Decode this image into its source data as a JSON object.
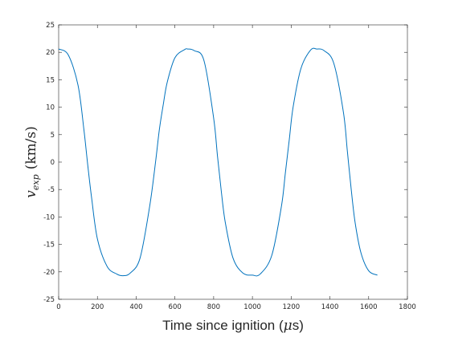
{
  "chart_data": {
    "type": "line",
    "title": "",
    "xlabel": "Time since ignition (μs)",
    "xlabel_parts": {
      "main": "Time since ignition (",
      "symbol": "μ",
      "unit_end": "s)"
    },
    "ylabel": "v_exp (km/s)",
    "ylabel_parts": {
      "var": "v",
      "sub": "exp",
      "unit": "(km/s)"
    },
    "xlim": [
      0,
      1800
    ],
    "ylim": [
      -25,
      25
    ],
    "xticks": [
      0,
      200,
      400,
      600,
      800,
      1000,
      1200,
      1400,
      1600,
      1800
    ],
    "yticks": [
      -25,
      -20,
      -15,
      -10,
      -5,
      0,
      5,
      10,
      15,
      20,
      25
    ],
    "grid": false,
    "legend": "none",
    "series": [
      {
        "color": "#0072BD",
        "x": [
          0,
          50,
          100,
          130,
          150,
          170,
          200,
          250,
          300,
          333,
          370,
          420,
          470,
          500,
          520,
          540,
          560,
          600,
          650,
          666,
          700,
          750,
          800,
          820,
          840,
          860,
          900,
          950,
          1000,
          1040,
          1100,
          1150,
          1170,
          1190,
          1210,
          1250,
          1300,
          1333,
          1370,
          1420,
          1470,
          1490,
          1510,
          1530,
          1560,
          1600,
          1645
        ],
        "y": [
          20.6,
          19.5,
          14.0,
          6.0,
          -0.5,
          -6.5,
          -14.0,
          -19.0,
          -20.4,
          -20.7,
          -20.2,
          -17.5,
          -8.0,
          0.0,
          6.0,
          10.5,
          14.5,
          19.0,
          20.5,
          20.6,
          20.3,
          18.5,
          8.0,
          1.0,
          -5.5,
          -11.0,
          -17.5,
          -20.2,
          -20.6,
          -20.4,
          -17.0,
          -8.0,
          -2.0,
          4.0,
          10.0,
          17.0,
          20.4,
          20.6,
          20.3,
          18.0,
          9.0,
          2.0,
          -5.0,
          -11.0,
          -16.5,
          -19.8,
          -20.6
        ]
      }
    ]
  }
}
